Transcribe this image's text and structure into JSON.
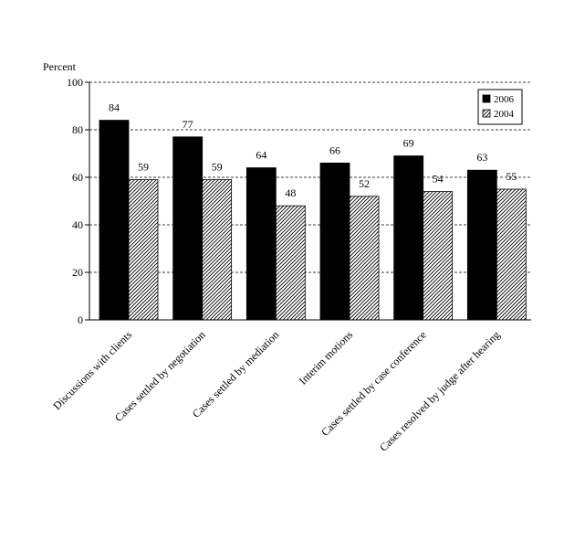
{
  "chart_data": {
    "type": "bar",
    "ylabel": "Percent",
    "ylim": [
      0,
      100
    ],
    "yticks": [
      0,
      20,
      40,
      60,
      80,
      100
    ],
    "grid": true,
    "legend_position": "top-right",
    "categories": [
      "Discussions with clients",
      "Cases settled by negotiation",
      "Cases settled by mediation",
      "Interim motions",
      "Cases settled by case conference",
      "Cases resolved by judge after hearing"
    ],
    "series": [
      {
        "name": "2006",
        "values": [
          84,
          77,
          64,
          66,
          69,
          63
        ],
        "labels": [
          "84",
          "77",
          "64",
          "66",
          "69",
          "63"
        ],
        "fill": "solid",
        "color": "#000000"
      },
      {
        "name": "2004",
        "values": [
          59,
          59,
          48,
          52,
          54,
          55
        ],
        "labels": [
          "59",
          "59",
          "48",
          "52",
          "54",
          "55"
        ],
        "fill": "hatched",
        "color": "#000000"
      }
    ]
  }
}
